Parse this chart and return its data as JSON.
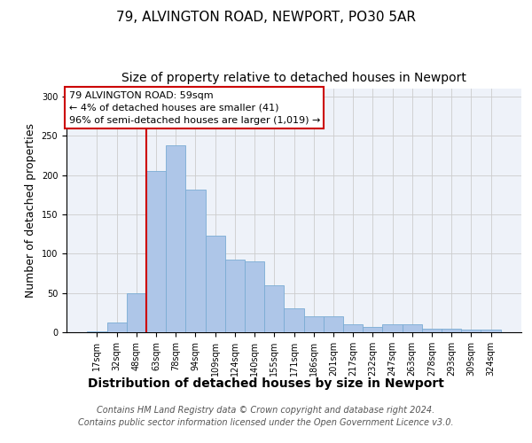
{
  "title1": "79, ALVINGTON ROAD, NEWPORT, PO30 5AR",
  "title2": "Size of property relative to detached houses in Newport",
  "xlabel": "Distribution of detached houses by size in Newport",
  "ylabel": "Number of detached properties",
  "categories": [
    "17sqm",
    "32sqm",
    "48sqm",
    "63sqm",
    "78sqm",
    "94sqm",
    "109sqm",
    "124sqm",
    "140sqm",
    "155sqm",
    "171sqm",
    "186sqm",
    "201sqm",
    "217sqm",
    "232sqm",
    "247sqm",
    "263sqm",
    "278sqm",
    "293sqm",
    "309sqm",
    "324sqm"
  ],
  "values": [
    1,
    12,
    50,
    205,
    238,
    182,
    123,
    93,
    90,
    60,
    30,
    20,
    20,
    10,
    7,
    10,
    10,
    5,
    5,
    3,
    3
  ],
  "bar_color": "#aec6e8",
  "bar_edge_color": "#7aacd4",
  "vline_x_index": 2.5,
  "vline_color": "#cc0000",
  "annotation_line1": "79 ALVINGTON ROAD: 59sqm",
  "annotation_line2": "← 4% of detached houses are smaller (41)",
  "annotation_line3": "96% of semi-detached houses are larger (1,019) →",
  "annotation_box_color": "#ffffff",
  "annotation_box_edge_color": "#cc0000",
  "ylim": [
    0,
    310
  ],
  "yticks": [
    0,
    50,
    100,
    150,
    200,
    250,
    300
  ],
  "footer_line1": "Contains HM Land Registry data © Crown copyright and database right 2024.",
  "footer_line2": "Contains public sector information licensed under the Open Government Licence v3.0.",
  "bg_color": "#eef2f9",
  "title1_fontsize": 11,
  "title2_fontsize": 10,
  "xlabel_fontsize": 10,
  "ylabel_fontsize": 9,
  "tick_fontsize": 7,
  "annotation_fontsize": 8,
  "footer_fontsize": 7
}
